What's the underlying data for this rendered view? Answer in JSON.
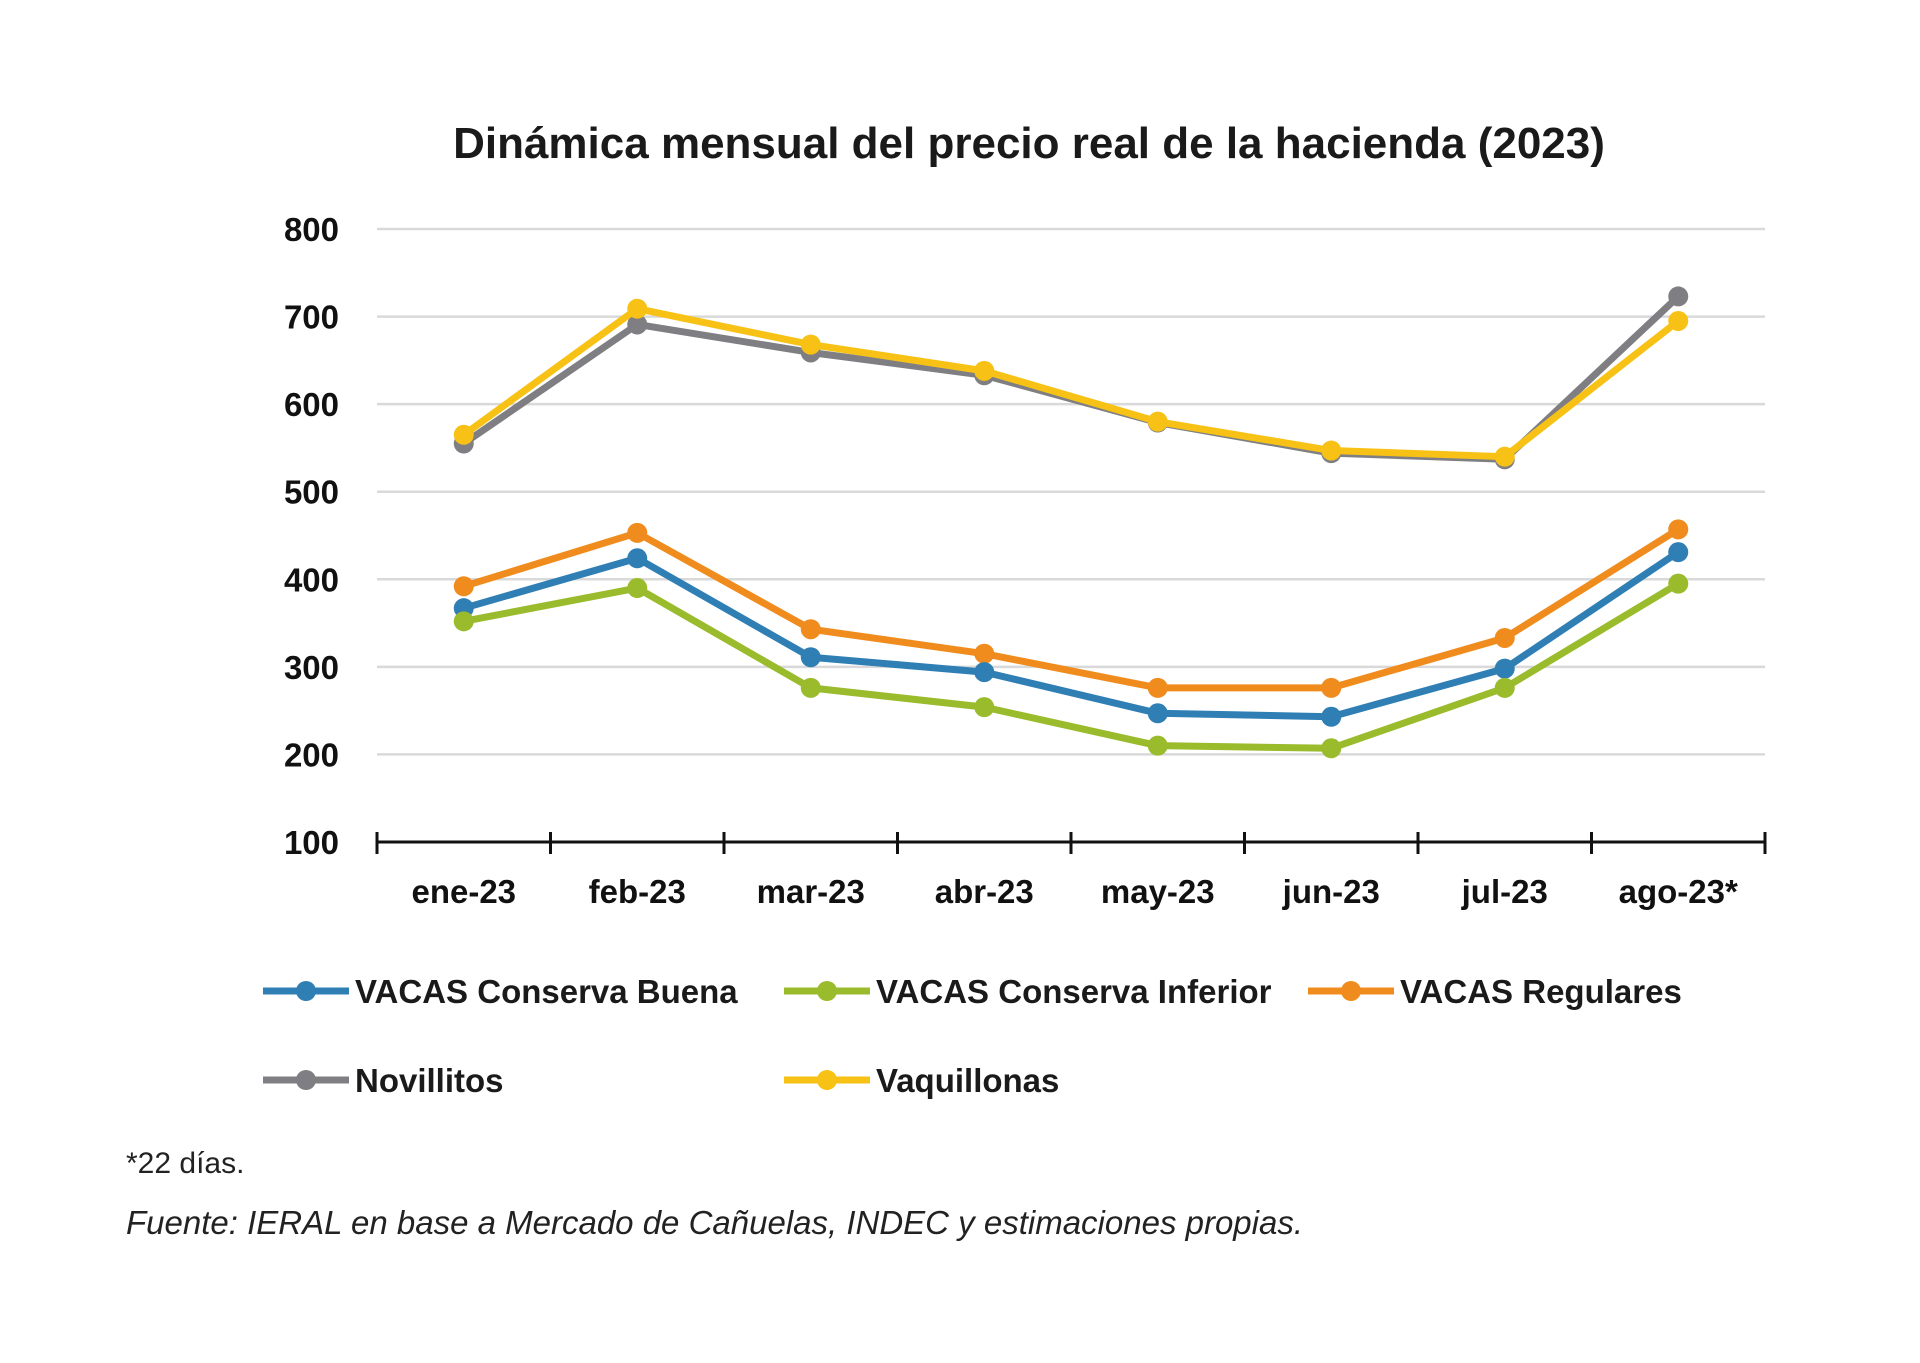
{
  "chart_data": {
    "type": "line",
    "title": "Dinámica mensual del precio real de la hacienda (2023)",
    "xlabel": "",
    "ylabel": "",
    "ylim": [
      100,
      800
    ],
    "yticks": [
      "800",
      "700",
      "600",
      "500",
      "400",
      "300",
      "200",
      "100"
    ],
    "grid": true,
    "legend_position": "bottom",
    "categories": [
      "ene-23",
      "feb-23",
      "mar-23",
      "abr-23",
      "may-23",
      "jun-23",
      "jul-23",
      "ago-23*"
    ],
    "series": [
      {
        "name": "VACAS Conserva Buena",
        "color": "#2f7fb5",
        "values": [
          367,
          424,
          311,
          294,
          247,
          243,
          298,
          431
        ]
      },
      {
        "name": "VACAS Conserva Inferior",
        "color": "#9abb2c",
        "values": [
          352,
          390,
          276,
          254,
          210,
          207,
          276,
          395
        ]
      },
      {
        "name": "VACAS Regulares",
        "color": "#f08c1e",
        "values": [
          392,
          453,
          343,
          315,
          276,
          276,
          333,
          457
        ]
      },
      {
        "name": "Novillitos",
        "color": "#7f7f83",
        "values": [
          555,
          691,
          659,
          633,
          579,
          544,
          537,
          723
        ]
      },
      {
        "name": "Vaquillonas",
        "color": "#f7c215",
        "values": [
          565,
          709,
          668,
          638,
          580,
          547,
          540,
          695
        ]
      }
    ],
    "footnote": "*22 días.",
    "source": "Fuente: IERAL en base a Mercado de Cañuelas, INDEC y estimaciones propias."
  }
}
